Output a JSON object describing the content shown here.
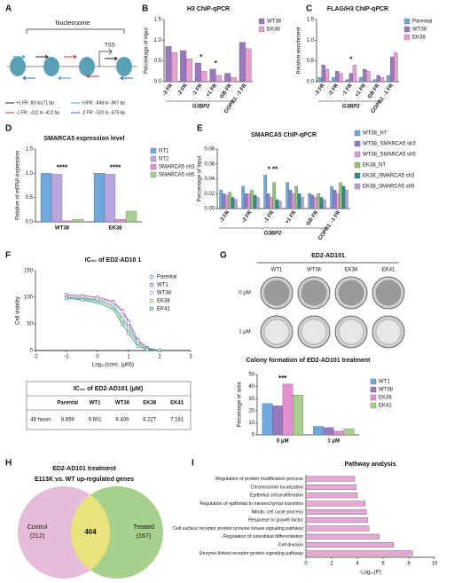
{
  "diagram_a": {
    "panel": "A",
    "nucleosome_label": "Nucleosome",
    "tss_label": "TSS",
    "legend": [
      "+1 FR: 83 to171 bp",
      "+3FR: -848 to -967 bp",
      "-1 FR: -312 to -412 bp",
      "-2 FR: -520 to -675 bp"
    ]
  },
  "chart_data": [
    {
      "panel": "B",
      "type": "bar",
      "title": "H3 ChIP-qPCR",
      "y_label": "Percentage of input",
      "x_group_label": "G3BP2",
      "categories": [
        "-3 FR",
        "-2 FR",
        "-1 FR",
        "+1 FR",
        "GB FR",
        "COPB1_-1 FR"
      ],
      "series": [
        {
          "name": "WT38",
          "color": "#9a78c0",
          "values": [
            0.85,
            0.75,
            0.45,
            0.3,
            0.2,
            0.95
          ]
        },
        {
          "name": "EK38",
          "color": "#e6a0d0",
          "values": [
            0.7,
            0.55,
            0.25,
            0.15,
            0.1,
            0.8
          ]
        }
      ],
      "ylim": [
        0,
        1.5
      ],
      "yticks": [
        {
          "value": 0,
          "label": "0.0"
        },
        {
          "value": 0.5,
          "label": "0.5"
        },
        {
          "value": 1,
          "label": "1.0"
        },
        {
          "value": 1.5,
          "label": "1.5"
        }
      ],
      "annotations": [
        {
          "text": "*",
          "category": "-1 FR"
        },
        {
          "text": "*",
          "category": "+1 FR"
        }
      ]
    },
    {
      "panel": "C",
      "type": "bar",
      "title": "FLAG/H3 ChIP-qPCR",
      "y_label": "Relative enrichment",
      "x_group_label": "G3BP2",
      "categories": [
        "-3 FR",
        "-2 FR",
        "-1 FR",
        "+1 FR",
        "GB FR",
        "COPB1_-1 FR"
      ],
      "series": [
        {
          "name": "Parental",
          "color": "#6fa8dc",
          "values": [
            0.1,
            0.1,
            0.05,
            0.1,
            0.05,
            0.15
          ]
        },
        {
          "name": "WT38",
          "color": "#9a78c0",
          "values": [
            0.4,
            0.25,
            0.2,
            0.3,
            0.15,
            0.6
          ]
        },
        {
          "name": "EK38",
          "color": "#e6a0d0",
          "values": [
            0.3,
            0.2,
            0.4,
            0.25,
            0.1,
            0.7
          ]
        }
      ],
      "ylim": [
        0,
        1.5
      ],
      "yticks": [
        {
          "value": 0,
          "label": "0.0"
        },
        {
          "value": 0.5,
          "label": "0.5"
        },
        {
          "value": 1,
          "label": "1.0"
        },
        {
          "value": 1.5,
          "label": "1.5"
        }
      ],
      "annotations": [
        {
          "text": "*",
          "category": "-1 FR"
        }
      ]
    },
    {
      "panel": "D",
      "type": "bar",
      "title": "SMARCA5 expression level",
      "y_label": "Relative of mRNA expression",
      "categories": [
        "WT38",
        "EK38"
      ],
      "series": [
        {
          "name": "NT1",
          "color": "#6fa8dc",
          "values": [
            1.0,
            1.0
          ]
        },
        {
          "name": "NT2",
          "color": "#b9a6e0",
          "values": [
            0.98,
            0.98
          ]
        },
        {
          "name": "SMARCA5 sh3",
          "color": "#e58fd0",
          "values": [
            0.02,
            0.05
          ]
        },
        {
          "name": "SMARCA5 sh5",
          "color": "#a8d08d",
          "values": [
            0.05,
            0.22
          ]
        }
      ],
      "ylim": [
        0,
        1.5
      ],
      "yticks": [
        {
          "value": 0,
          "label": "0.0"
        },
        {
          "value": 0.5,
          "label": "0.5"
        },
        {
          "value": 1,
          "label": "1.0"
        },
        {
          "value": 1.5,
          "label": "1.5"
        }
      ],
      "annotations": [
        {
          "text": "****",
          "category": "WT38"
        },
        {
          "text": "****",
          "category": "EK38"
        }
      ]
    },
    {
      "panel": "E",
      "type": "bar",
      "title": "SMARCA5 ChIP-qPCR",
      "y_label": "Percentage of input",
      "x_group_label": "G3BP2",
      "categories": [
        "-3 FR",
        "-2 FR",
        "-1 FR",
        "+1 FR",
        "GB FR",
        "COPB1_-1 FR"
      ],
      "series": [
        {
          "name": "WT38_NT",
          "color": "#6fa8dc",
          "values": [
            0.025,
            0.03,
            0.045,
            0.035,
            0.02,
            0.03
          ]
        },
        {
          "name": "WT38_SMARCA5 sh3",
          "color": "#8e7cc3",
          "values": [
            0.02,
            0.02,
            0.02,
            0.025,
            0.018,
            0.025
          ]
        },
        {
          "name": "WT38_SMARCA5 sh5",
          "color": "#e39ad6",
          "values": [
            0.018,
            0.02,
            0.015,
            0.02,
            0.015,
            0.02
          ]
        },
        {
          "name": "EK38_NT",
          "color": "#93c47d",
          "values": [
            0.022,
            0.025,
            0.035,
            0.03,
            0.02,
            0.035
          ]
        },
        {
          "name": "EK38_SMARCA5 sh3",
          "color": "#2e8b8b",
          "values": [
            0.015,
            0.018,
            0.012,
            0.02,
            0.015,
            0.03
          ]
        },
        {
          "name": "EK38_SMARCA5 sh5",
          "color": "#b4a7d6",
          "values": [
            0.012,
            0.015,
            0.01,
            0.015,
            0.012,
            0.025
          ]
        }
      ],
      "ylim": [
        0,
        0.08
      ],
      "yticks": [
        {
          "value": 0,
          "label": "0.00"
        },
        {
          "value": 0.02,
          "label": "0.02"
        },
        {
          "value": 0.04,
          "label": "0.04"
        },
        {
          "value": 0.06,
          "label": "0.06"
        },
        {
          "value": 0.08,
          "label": "0.08"
        }
      ],
      "annotations": [
        {
          "text": "* **",
          "category": "-1 FR"
        }
      ]
    },
    {
      "panel": "F",
      "type": "line",
      "title": "IC₅₀ of ED2-AD10 1",
      "x_label": "Log₁₀(conc. (μM))",
      "y_label": "Cell viability",
      "x": [
        -1,
        -0.5,
        0,
        0.5,
        0.8,
        1,
        1.3,
        1.6,
        2
      ],
      "series": [
        {
          "name": "Parental",
          "color": "#5fa8c8",
          "values": [
            100,
            98,
            95,
            85,
            62,
            45,
            15,
            5,
            0
          ]
        },
        {
          "name": "WT1",
          "color": "#8e6bbf",
          "values": [
            105,
            103,
            100,
            92,
            75,
            55,
            20,
            5,
            0
          ]
        },
        {
          "name": "WT38",
          "color": "#c9a0e0",
          "values": [
            102,
            100,
            97,
            90,
            72,
            52,
            18,
            4,
            0
          ]
        },
        {
          "name": "EK38",
          "color": "#8dc06a",
          "values": [
            100,
            97,
            93,
            82,
            58,
            40,
            12,
            3,
            0
          ]
        },
        {
          "name": "EK41",
          "color": "#3a9a9a",
          "values": [
            98,
            95,
            90,
            78,
            50,
            32,
            8,
            2,
            0
          ]
        }
      ],
      "xlim": [
        -2,
        3
      ],
      "xticks": [
        -2,
        -1,
        0,
        1,
        2,
        3
      ],
      "ylim": [
        0,
        150
      ],
      "yticks": [
        0,
        50,
        100,
        150
      ]
    },
    {
      "type": "bar",
      "title": "Colony formation of ED2-AD101 treatment",
      "y_label": "Percentage of area",
      "categories": [
        "0 μM",
        "1 μM"
      ],
      "series": [
        {
          "name": "WT1",
          "color": "#6fa8dc",
          "values": [
            26,
            7
          ]
        },
        {
          "name": "WT38",
          "color": "#9a78c0",
          "values": [
            24,
            6
          ]
        },
        {
          "name": "EK38",
          "color": "#e58fd0",
          "values": [
            42,
            3
          ]
        },
        {
          "name": "EK41",
          "color": "#a8d08d",
          "values": [
            33,
            5
          ]
        }
      ],
      "ylim": [
        0,
        50
      ],
      "yticks": [
        0,
        10,
        20,
        30,
        40,
        50
      ],
      "annotations": [
        {
          "text": "***",
          "category": "0 μM"
        }
      ]
    },
    {
      "panel": "I",
      "type": "barh",
      "title": "Pathway analysis",
      "x_label": "-Log₁₀(P)",
      "color": "#e6a8d7",
      "categories": [
        "Regulation of protein modification process",
        "Chromosome localization",
        "Epithelial cell proliferation",
        "Regulation of epithelial to mesenchymal transition",
        "Mitotic cell cycle process",
        "Response to growth factor",
        "Cell surface receptor protein tyrosine kinase signaling pathway",
        "Regulation of osteoblast differentiation",
        "Cell division",
        "Enzyme-linked receptor protein signaling pathway"
      ],
      "values": [
        3.8,
        3.9,
        4.0,
        4.6,
        4.7,
        4.8,
        4.9,
        5.7,
        6.8,
        8.3
      ],
      "xlim": [
        0,
        10
      ],
      "xticks": [
        0,
        2,
        4,
        6,
        8,
        10
      ]
    }
  ],
  "table_f": {
    "title": "IC₅₀ of ED2-AD101 (μM)",
    "columns": [
      "Parental",
      "WT1",
      "WT38",
      "EK38",
      "EK41"
    ],
    "row_label": "48 hours",
    "row": [
      "8.659",
      "9.601",
      "9.406",
      "8.227",
      "7.181"
    ]
  },
  "images_g": {
    "panel": "G",
    "title": "ED2-AD101",
    "columns": [
      "WT1",
      "WT38",
      "EK38",
      "EK41"
    ],
    "rows": [
      "0 μM",
      "1 μM"
    ]
  },
  "venn_h": {
    "panel": "H",
    "title": "ED2-AD101 treatment",
    "subtitle": "E113K vs. WT up-regulated genes",
    "left_label": "Control",
    "left_count": "(212)",
    "overlap_count": "404",
    "right_label": "Treated",
    "right_count": "(167)"
  }
}
